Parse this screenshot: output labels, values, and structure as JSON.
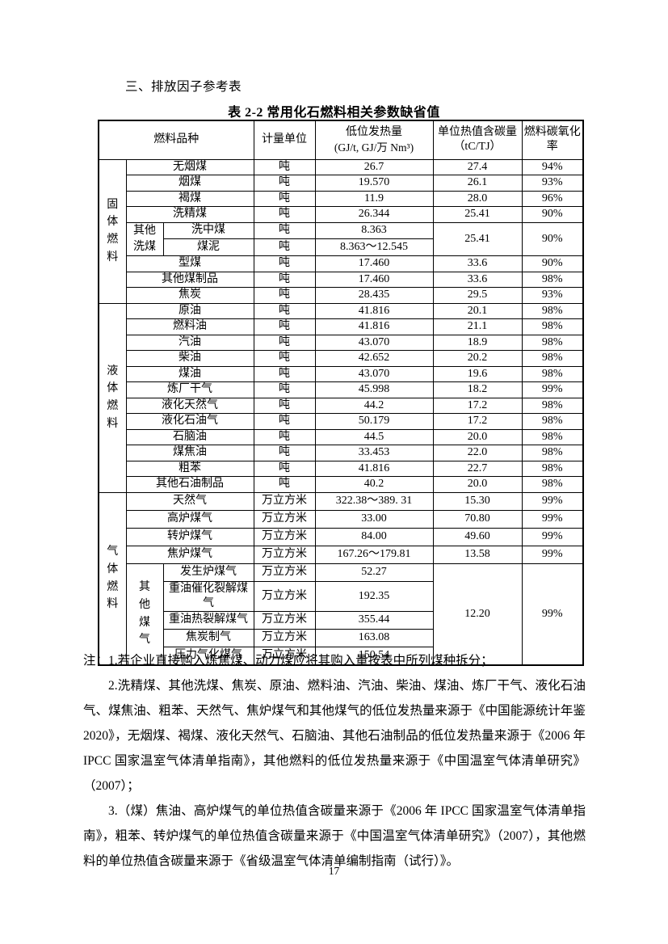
{
  "page": {
    "section_heading": "三、排放因子参考表",
    "table_title": "表 2-2 常用化石燃料相关参数缺省值",
    "page_number": "17"
  },
  "colors": {
    "text": "#000000",
    "background": "#ffffff",
    "table_border": "#000000"
  },
  "table": {
    "headers": {
      "fuel": "燃料品种",
      "unit": "计量单位",
      "ncv_line1": "低位发热量",
      "ncv_line2": "(GJ/t, GJ/万 Nm³)",
      "carbon": "单位热值含碳量（tC/TJ）",
      "oxidation": "燃料碳氧化率"
    },
    "sections": [
      {
        "category": "固体燃料",
        "rows": [
          {
            "fuel": "无烟煤",
            "unit": "吨",
            "ncv": "26.7",
            "c": "27.4",
            "o": "94%"
          },
          {
            "fuel": "烟煤",
            "unit": "吨",
            "ncv": "19.570",
            "c": "26.1",
            "o": "93%"
          },
          {
            "fuel": "褐煤",
            "unit": "吨",
            "ncv": "11.9",
            "c": "28.0",
            "o": "96%"
          },
          {
            "fuel": "洗精煤",
            "unit": "吨",
            "ncv": "26.344",
            "c": "25.41",
            "o": "90%"
          },
          {
            "g": "其他洗煤",
            "gr": 2,
            "gcls": "g2",
            "fuel": "洗中煤",
            "unit": "吨",
            "ncv": "8.363",
            "c": "25.41",
            "cr": 2,
            "o": "90%",
            "or": 2
          },
          {
            "ing": true,
            "fuel": "煤泥",
            "unit": "吨",
            "ncv": "8.363～12.545",
            "c": null,
            "o": null
          },
          {
            "fuel": "型煤",
            "unit": "吨",
            "ncv": "17.460",
            "c": "33.6",
            "o": "90%"
          },
          {
            "fuel": "其他煤制品",
            "unit": "吨",
            "ncv": "17.460",
            "c": "33.6",
            "o": "98%"
          },
          {
            "fuel": "焦炭",
            "unit": "吨",
            "ncv": "28.435",
            "c": "29.5",
            "o": "93%"
          }
        ]
      },
      {
        "category": "液体燃料",
        "rows": [
          {
            "fuel": "原油",
            "unit": "吨",
            "ncv": "41.816",
            "c": "20.1",
            "o": "98%"
          },
          {
            "fuel": "燃料油",
            "unit": "吨",
            "ncv": "41.816",
            "c": "21.1",
            "o": "98%"
          },
          {
            "fuel": "汽油",
            "unit": "吨",
            "ncv": "43.070",
            "c": "18.9",
            "o": "98%"
          },
          {
            "fuel": "柴油",
            "unit": "吨",
            "ncv": "42.652",
            "c": "20.2",
            "o": "98%"
          },
          {
            "fuel": "煤油",
            "unit": "吨",
            "ncv": "43.070",
            "c": "19.6",
            "o": "98%"
          },
          {
            "fuel": "炼厂干气",
            "unit": "吨",
            "ncv": "45.998",
            "c": "18.2",
            "o": "99%"
          },
          {
            "fuel": "液化天然气",
            "unit": "吨",
            "ncv": "44.2",
            "c": "17.2",
            "o": "98%"
          },
          {
            "fuel": "液化石油气",
            "unit": "吨",
            "ncv": "50.179",
            "c": "17.2",
            "o": "98%"
          },
          {
            "fuel": "石脑油",
            "unit": "吨",
            "ncv": "44.5",
            "c": "20.0",
            "o": "98%"
          },
          {
            "fuel": "煤焦油",
            "unit": "吨",
            "ncv": "33.453",
            "c": "22.0",
            "o": "98%"
          },
          {
            "fuel": "粗苯",
            "unit": "吨",
            "ncv": "41.816",
            "c": "22.7",
            "o": "98%"
          },
          {
            "fuel": "其他石油制品",
            "unit": "吨",
            "ncv": "40.2",
            "c": "20.0",
            "o": "98%"
          }
        ]
      },
      {
        "category": "气体燃料",
        "rows": [
          {
            "fuel": "天然气",
            "unit": "万立方米",
            "ncv": "322.38～389. 31",
            "c": "15.30",
            "o": "99%"
          },
          {
            "fuel": "高炉煤气",
            "unit": "万立方米",
            "ncv": "33.00",
            "c": "70.80",
            "o": "99%"
          },
          {
            "fuel": "转炉煤气",
            "unit": "万立方米",
            "ncv": "84.00",
            "c": "49.60",
            "o": "99%"
          },
          {
            "fuel": "焦炉煤气",
            "unit": "万立方米",
            "ncv": "167.26～179.81",
            "c": "13.58",
            "o": "99%"
          },
          {
            "g": "其他煤气",
            "gr": 5,
            "gcls": "g1",
            "fuel": "发生炉煤气",
            "unit": "万立方米",
            "ncv": "52.27",
            "c": "12.20",
            "cr": 5,
            "o": "99%",
            "or": 5
          },
          {
            "ing": true,
            "fuel": "重油催化裂解煤气",
            "unit": "万立方米",
            "ncv": "192.35",
            "c": null,
            "o": null
          },
          {
            "ing": true,
            "fuel": "重油热裂解煤气",
            "unit": "万立方米",
            "ncv": "355.44",
            "c": null,
            "o": null
          },
          {
            "ing": true,
            "fuel": "焦炭制气",
            "unit": "万立方米",
            "ncv": "163.08",
            "c": null,
            "o": null
          },
          {
            "ing": true,
            "fuel": "压力气化煤气",
            "unit": "万立方米",
            "ncv": "150.54",
            "c": null,
            "o": null
          }
        ]
      }
    ]
  },
  "notes": [
    "注：1.若企业直接购入炼焦煤、动力煤应将其购入量按表中所列煤种拆分；",
    "2.洗精煤、其他洗煤、焦炭、原油、燃料油、汽油、柴油、煤油、炼厂干气、液化石油气、煤焦油、粗苯、天然气、焦炉煤气和其他煤气的低位发热量来源于《中国能源统计年鉴 2020》，无烟煤、褐煤、液化天然气、石脑油、其他石油制品的低位发热量来源于《2006 年 IPCC 国家温室气体清单指南》，其他燃料的低位发热量来源于《中国温室气体清单研究》（2007）；",
    "3.（煤）焦油、高炉煤气的单位热值含碳量来源于《2006 年 IPCC 国家温室气体清单指南》，粗苯、转炉煤气的单位热值含碳量来源于《中国温室气体清单研究》（2007），其他燃料的单位热值含碳量来源于《省级温室气体清单编制指南（试行）》。"
  ]
}
